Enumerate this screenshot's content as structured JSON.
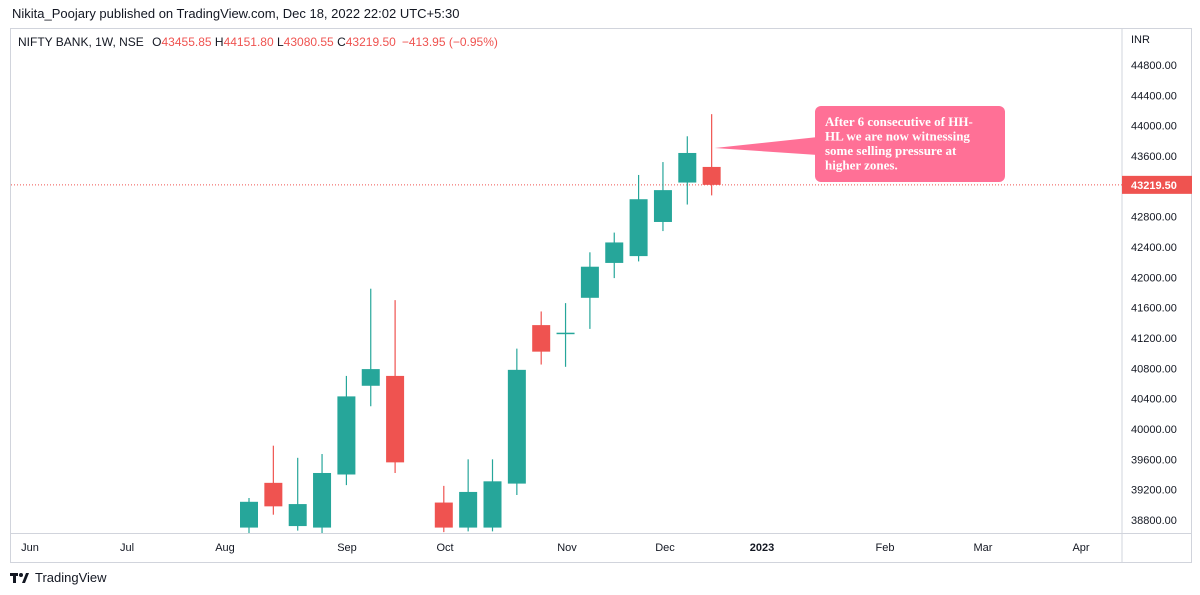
{
  "header": {
    "publisher": "Nikita_Poojary published on TradingView.com, Dec 18, 2022 22:02 UTC+5:30"
  },
  "legend": {
    "symbol": "NIFTY BANK, 1W, NSE",
    "o_label": "O",
    "o_value": "43455.85",
    "h_label": "H",
    "h_value": "44151.80",
    "l_label": "L",
    "l_value": "43080.55",
    "c_label": "C",
    "c_value": "43219.50",
    "change": "−413.95 (−0.95%)"
  },
  "footer": {
    "brand": "TradingView"
  },
  "colors": {
    "up": "#26a69a",
    "down": "#ef5350",
    "callout": "#ff7096",
    "price_line": "#ef5350"
  },
  "chart_data": {
    "type": "candlestick",
    "currency_label": "INR",
    "ylim": [
      38550,
      45300
    ],
    "y_ticks": [
      "38800.00",
      "39200.00",
      "39600.00",
      "40000.00",
      "40400.00",
      "40800.00",
      "41200.00",
      "41600.00",
      "42000.00",
      "42400.00",
      "42800.00",
      "43200.00",
      "43600.00",
      "44000.00",
      "44400.00",
      "44800.00"
    ],
    "last_price": "43219.50",
    "x_labels": [
      "Jun",
      "Jul",
      "Aug",
      "Sep",
      "Oct",
      "Nov",
      "Dec",
      "2023",
      "Feb",
      "Mar",
      "Apr"
    ],
    "candles": [
      {
        "week": "2022-08-08",
        "o": 38700,
        "h": 39090,
        "l": 38600,
        "c": 39040
      },
      {
        "week": "2022-08-15",
        "o": 39290,
        "h": 39780,
        "l": 38870,
        "c": 38980
      },
      {
        "week": "2022-08-22",
        "o": 38720,
        "h": 39620,
        "l": 38660,
        "c": 39010
      },
      {
        "week": "2022-08-29",
        "o": 38700,
        "h": 39670,
        "l": 38600,
        "c": 39420
      },
      {
        "week": "2022-09-05",
        "o": 39400,
        "h": 40700,
        "l": 39260,
        "c": 40430
      },
      {
        "week": "2022-09-12",
        "o": 40570,
        "h": 41850,
        "l": 40300,
        "c": 40790
      },
      {
        "week": "2022-09-19",
        "o": 40700,
        "h": 41700,
        "l": 39420,
        "c": 39560
      },
      {
        "week": "2022-10-03",
        "o": 39030,
        "h": 39250,
        "l": 38640,
        "c": 38700
      },
      {
        "week": "2022-10-10",
        "o": 38700,
        "h": 39600,
        "l": 38650,
        "c": 39170
      },
      {
        "week": "2022-10-17",
        "o": 38700,
        "h": 39600,
        "l": 38650,
        "c": 39310
      },
      {
        "week": "2022-10-24",
        "o": 39280,
        "h": 41060,
        "l": 39130,
        "c": 40780
      },
      {
        "week": "2022-10-31",
        "o": 41370,
        "h": 41550,
        "l": 40850,
        "c": 41020
      },
      {
        "week": "2022-11-07",
        "o": 41270,
        "h": 41660,
        "l": 40820,
        "c": 41270
      },
      {
        "week": "2022-11-14",
        "o": 41730,
        "h": 42330,
        "l": 41320,
        "c": 42140
      },
      {
        "week": "2022-11-21",
        "o": 42190,
        "h": 42590,
        "l": 41990,
        "c": 42460
      },
      {
        "week": "2022-11-28",
        "o": 42280,
        "h": 43350,
        "l": 42210,
        "c": 43030
      },
      {
        "week": "2022-12-05",
        "o": 42730,
        "h": 43520,
        "l": 42610,
        "c": 43150
      },
      {
        "week": "2022-12-12",
        "o": 43250,
        "h": 43860,
        "l": 42960,
        "c": 43640
      },
      {
        "week": "2022-12-19",
        "o": 43455.85,
        "h": 44151.8,
        "l": 43080.55,
        "c": 43219.5
      }
    ],
    "annotations": [
      {
        "type": "callout",
        "lines": [
          "After 6 consecutive of HH-",
          "HL we  are now witnessing",
          "some selling pressure at",
          "higher zones."
        ]
      }
    ]
  }
}
